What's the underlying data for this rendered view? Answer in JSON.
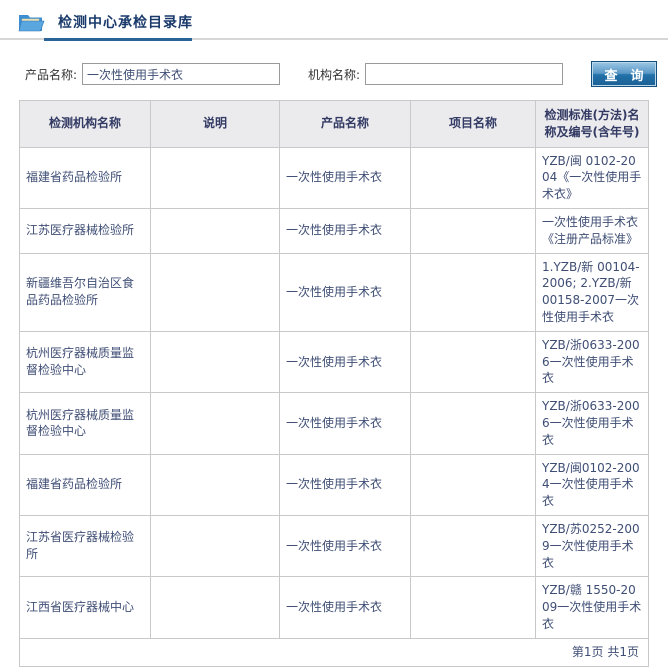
{
  "page": {
    "title": "检测中心承检目录库",
    "header_icon": "folder-icon"
  },
  "search": {
    "product_label": "产品名称:",
    "product_value": "一次性使用手术衣",
    "org_label": "机构名称:",
    "org_value": "",
    "button_label": "查　询"
  },
  "table": {
    "headers": [
      "检测机构名称",
      "说明",
      "产品名称",
      "项目名称",
      "检测标准(方法)名称及编号(含年号)"
    ],
    "col_keys": [
      "institution",
      "note",
      "product",
      "project",
      "standard"
    ],
    "rows": [
      [
        "福建省药品检验所",
        "",
        "一次性使用手术衣",
        "",
        "YZB/闽 0102-2004《一次性使用手术衣》"
      ],
      [
        "江苏医疗器械检验所",
        "",
        "一次性使用手术衣",
        "",
        "一次性使用手术衣《注册产品标准》"
      ],
      [
        "新疆维吾尔自治区食品药品检验所",
        "",
        "一次性使用手术衣",
        "",
        "1.YZB/新 00104-2006; 2.YZB/新 00158-2007一次性使用手术衣"
      ],
      [
        "杭州医疗器械质量监督检验中心",
        "",
        "一次性使用手术衣",
        "",
        "YZB/浙0633-2006一次性使用手术衣"
      ],
      [
        "杭州医疗器械质量监督检验中心",
        "",
        "一次性使用手术衣",
        "",
        "YZB/浙0633-2006一次性使用手术衣"
      ],
      [
        "福建省药品检验所",
        "",
        "一次性使用手术衣",
        "",
        "YZB/闽0102-2004一次性使用手术衣"
      ],
      [
        "江苏省医疗器械检验所",
        "",
        "一次性使用手术衣",
        "",
        "YZB/苏0252-2009一次性使用手术衣"
      ],
      [
        "江西省医疗器械中心",
        "",
        "一次性使用手术衣",
        "",
        "YZB/赣 1550-2009一次性使用手术衣"
      ]
    ]
  },
  "pagination": {
    "label": "第1页 共1页"
  },
  "colors": {
    "title_text": "#1a3a6b",
    "accent_underline": "#2a6496",
    "button_top": "#9cc8e5",
    "button_bottom": "#1b5f94",
    "button_border": "#14507f",
    "header_bg": "#ebebee",
    "cell_text": "#3f4e75",
    "table_border": "#c9c9c9"
  }
}
